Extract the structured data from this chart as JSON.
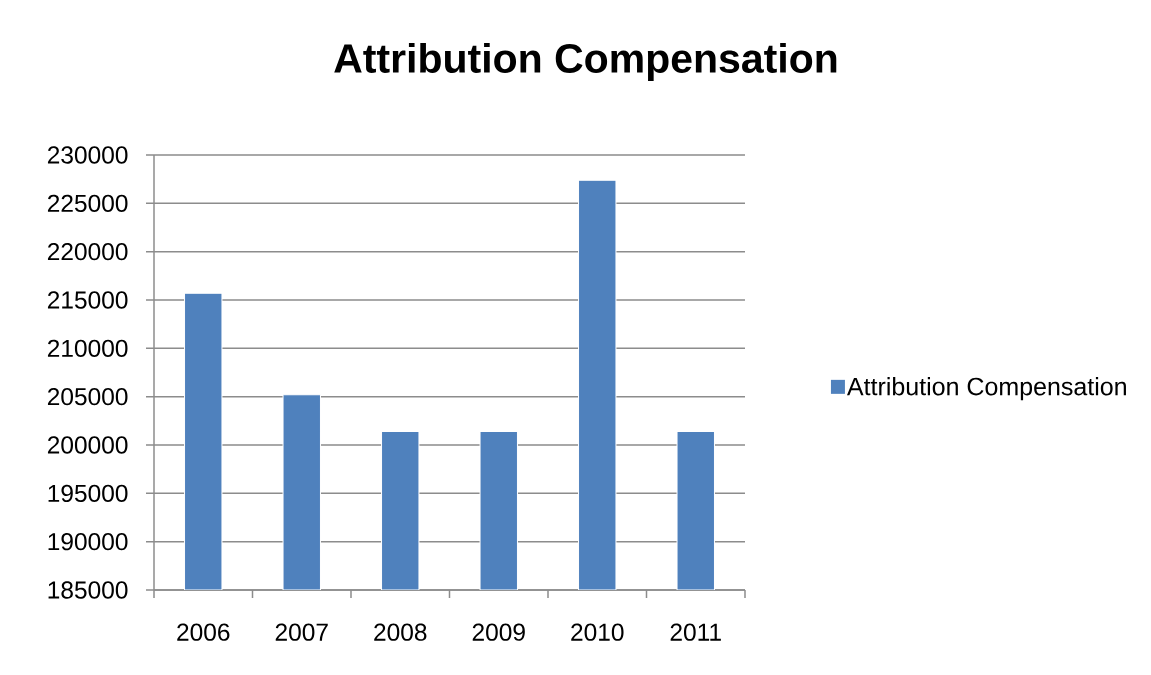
{
  "chart_data": {
    "type": "bar",
    "title": "Attribution Compensation",
    "categories": [
      "2006",
      "2007",
      "2008",
      "2009",
      "2010",
      "2011"
    ],
    "series": [
      {
        "name": "Attribution Compensation",
        "color": "#4f81bd",
        "values": [
          215700,
          205200,
          201400,
          201400,
          227400,
          201400
        ]
      }
    ],
    "ylim": [
      185000,
      230000
    ],
    "yticks": [
      185000,
      190000,
      195000,
      200000,
      205000,
      210000,
      215000,
      220000,
      225000,
      230000
    ],
    "grid": "y",
    "legend": "right"
  }
}
